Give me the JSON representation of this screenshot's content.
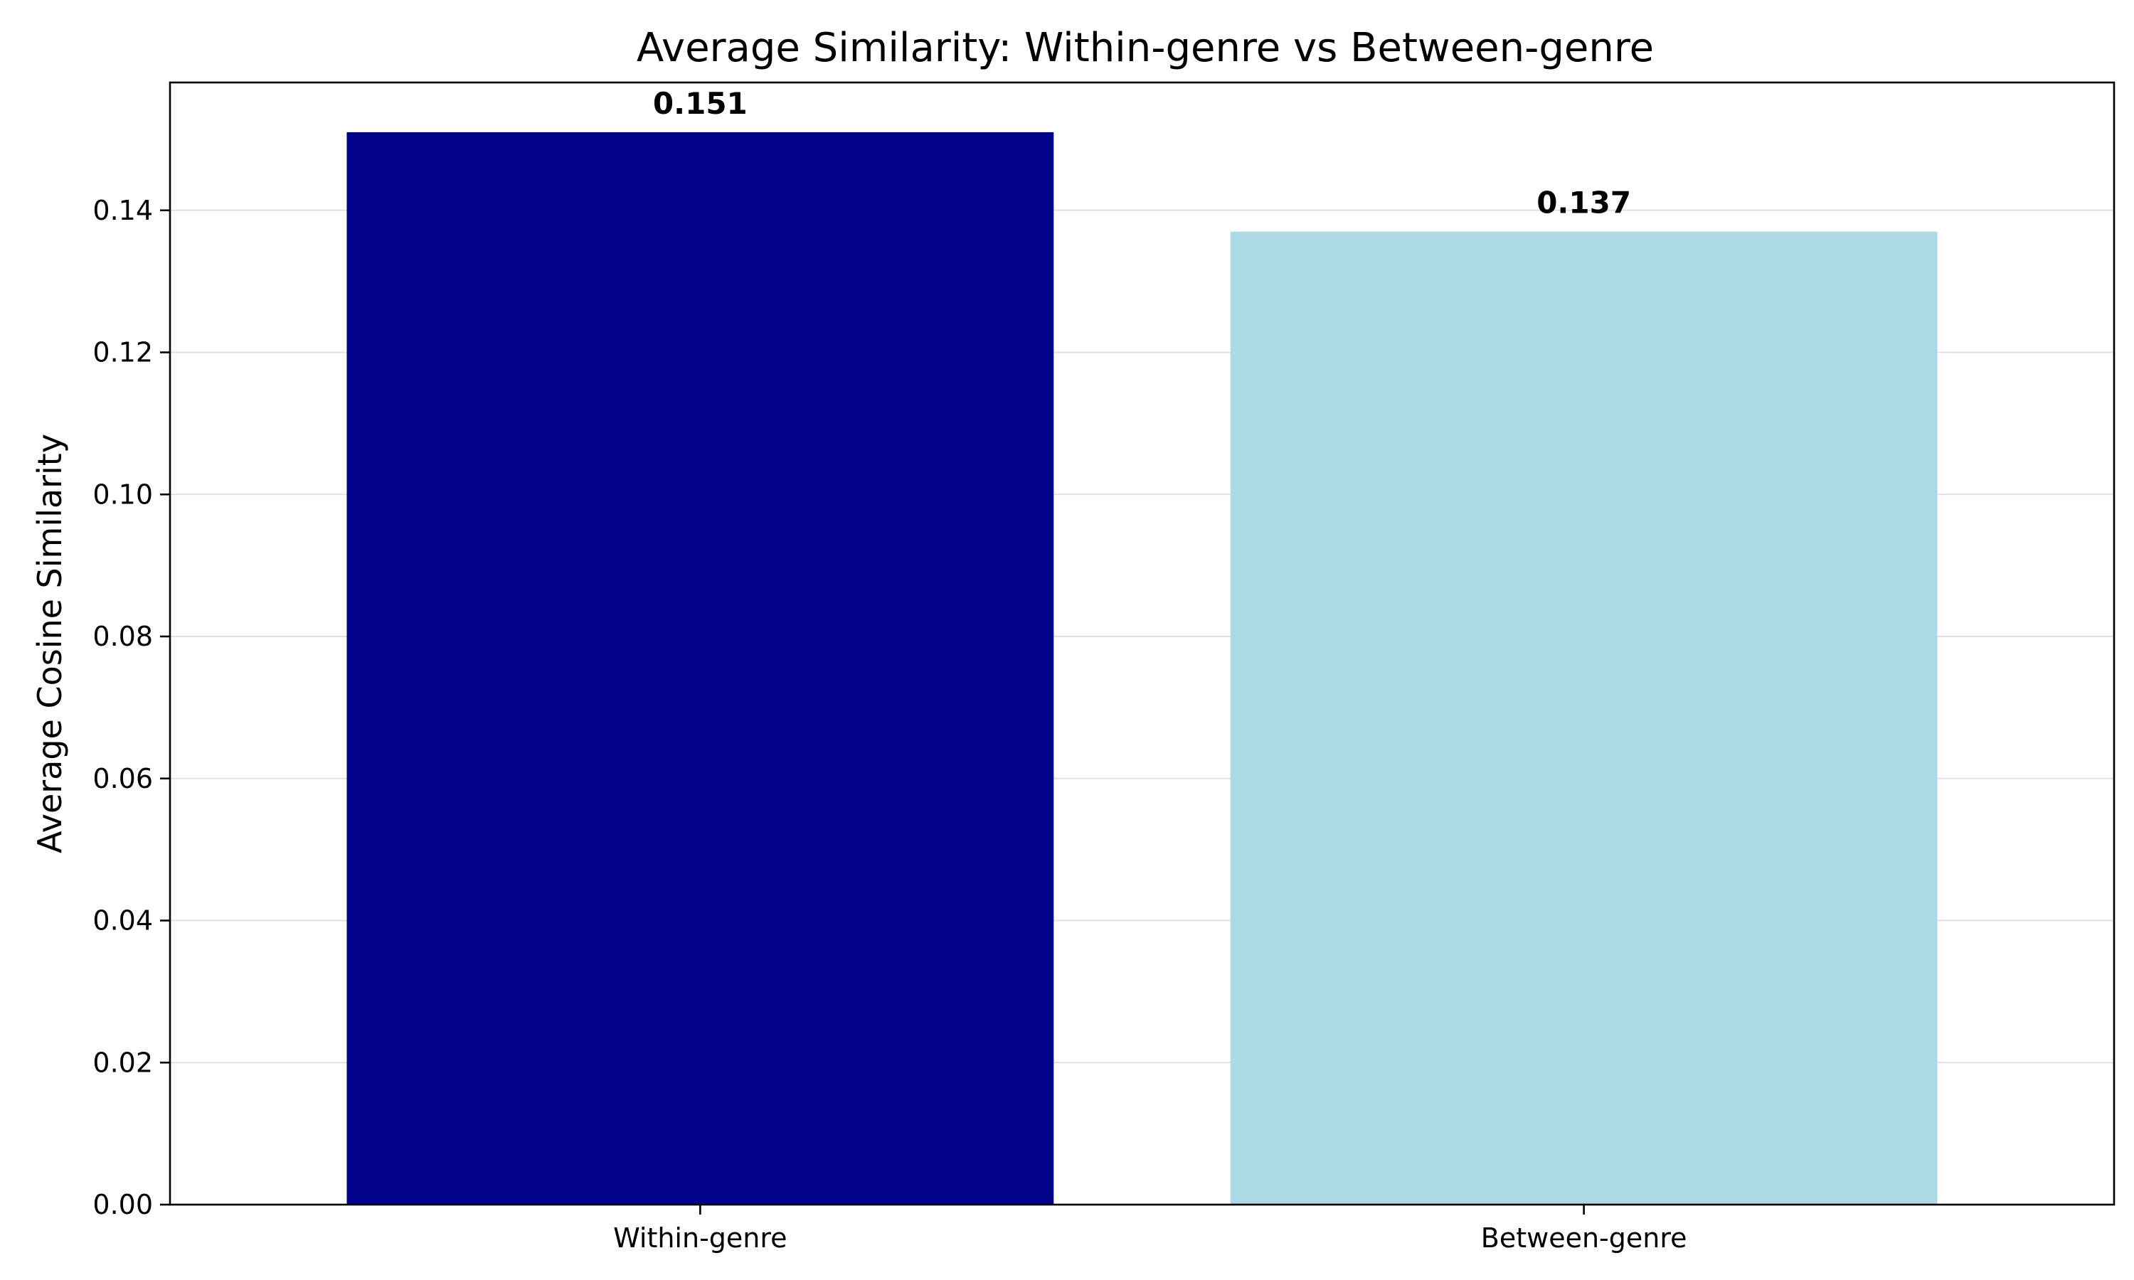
{
  "chart_data": {
    "type": "bar",
    "title": "Average Similarity: Within-genre vs Between-genre",
    "xlabel": "",
    "ylabel": "Average Cosine Similarity",
    "categories": [
      "Within-genre",
      "Between-genre"
    ],
    "values": [
      0.151,
      0.137
    ],
    "value_labels": [
      "0.151",
      "0.137"
    ],
    "colors": [
      "#00008B",
      "#ADD8E6"
    ],
    "ylim": [
      0,
      0.158
    ],
    "yticks": [
      0.0,
      0.02,
      0.04,
      0.06,
      0.08,
      0.1,
      0.12,
      0.14
    ],
    "ytick_labels": [
      "0.00",
      "0.02",
      "0.04",
      "0.06",
      "0.08",
      "0.10",
      "0.12",
      "0.14"
    ],
    "grid": "y",
    "gridline_color": "#cccccc"
  }
}
